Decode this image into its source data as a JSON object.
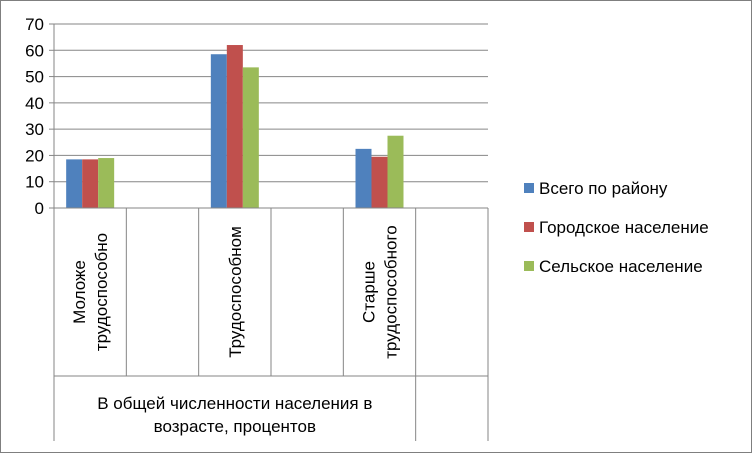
{
  "chart_data": {
    "type": "bar",
    "categories": [
      "Моложе трудоспособного",
      "Трудоспособном",
      "Старше трудоспособного"
    ],
    "category_lines": [
      [
        "Моложе",
        "трудоспособно"
      ],
      [
        "Трудоспособном"
      ],
      [
        "Старше",
        "трудоспособного"
      ]
    ],
    "group_label_lines": [
      "В общей численности населения в",
      "возрасте,  процентов"
    ],
    "series": [
      {
        "name": "Всего по району",
        "color": "#4F81BD",
        "values": [
          18.5,
          58.5,
          22.5
        ]
      },
      {
        "name": "Городское население",
        "color": "#C0504D",
        "values": [
          18.5,
          62,
          19.5
        ]
      },
      {
        "name": "Сельское население",
        "color": "#9BBB59",
        "values": [
          19,
          53.5,
          27.5
        ]
      }
    ],
    "ylim": [
      0,
      70
    ],
    "yticks": [
      0,
      10,
      20,
      30,
      40,
      50,
      60,
      70
    ],
    "grid": true,
    "legend": "right"
  }
}
